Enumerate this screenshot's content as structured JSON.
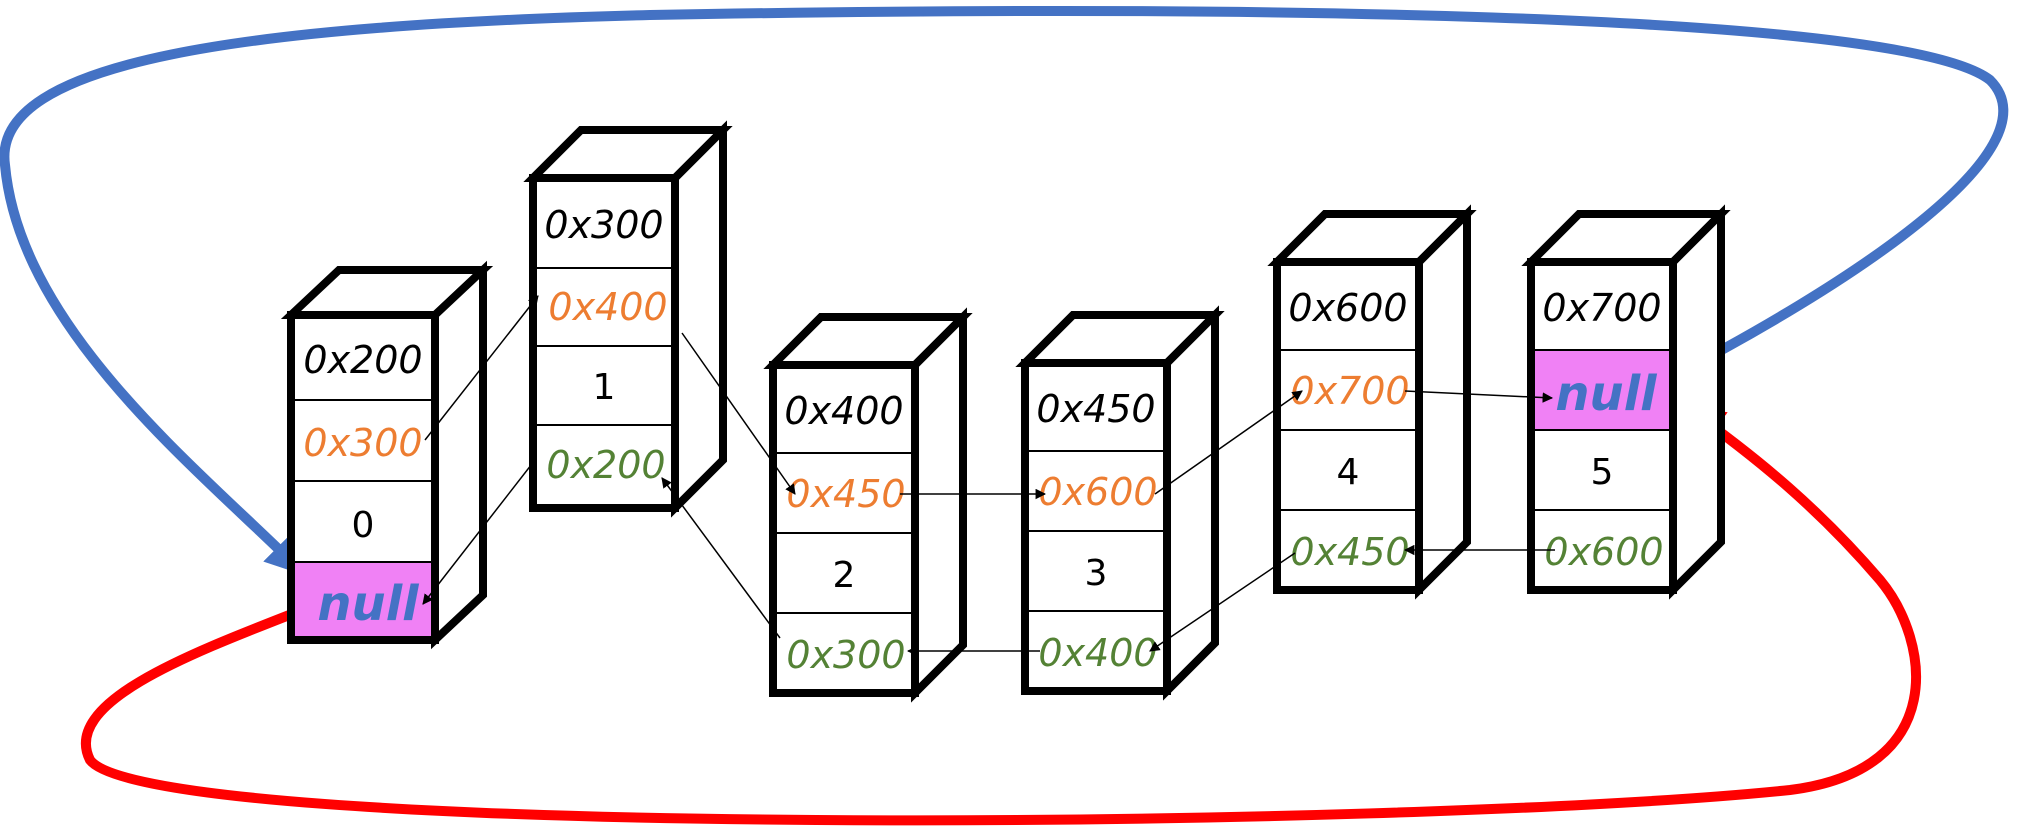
{
  "colors": {
    "black": "#000000",
    "orange": "#ED7D31",
    "green": "#548235",
    "blue": "#4472C4",
    "red": "#FF0000",
    "null_bg": "#F081F5",
    "null_text": "#4472C4"
  },
  "nodes": [
    {
      "address": "0x200",
      "next": "0x300",
      "value": "0",
      "prev": "null"
    },
    {
      "address": "0x300",
      "next": "0x400",
      "value": "1",
      "prev": "0x200"
    },
    {
      "address": "0x400",
      "next": "0x450",
      "value": "2",
      "prev": "0x300"
    },
    {
      "address": "0x450",
      "next": "0x600",
      "value": "3",
      "prev": "0x400"
    },
    {
      "address": "0x600",
      "next": "0x700",
      "value": "4",
      "prev": "0x450"
    },
    {
      "address": "0x700",
      "next": "null",
      "value": "5",
      "prev": "0x600"
    }
  ]
}
